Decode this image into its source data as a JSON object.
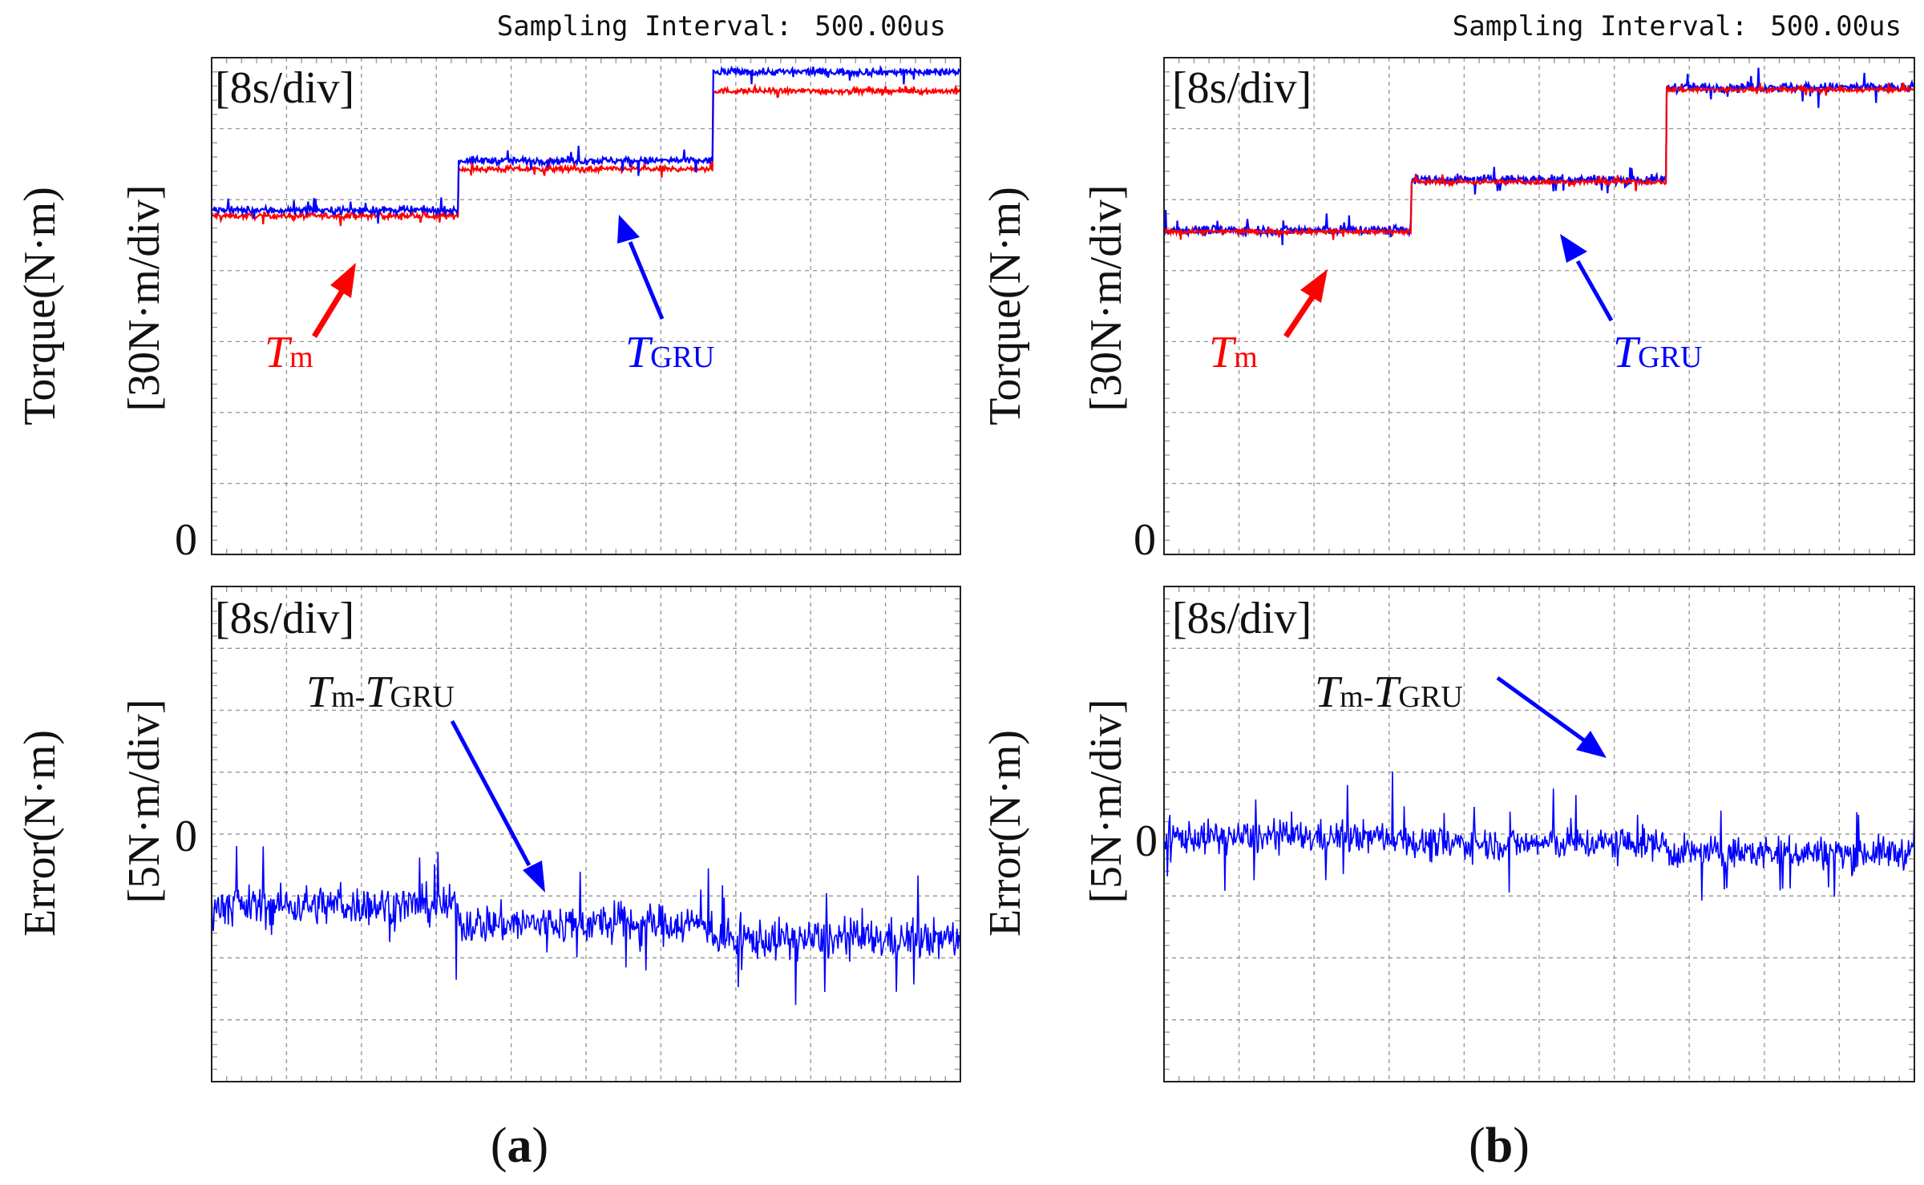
{
  "chart_data": [
    {
      "panel": "a",
      "type": "line",
      "header": "Sampling Interval:",
      "header_value": "500.00us",
      "timebase": "[8s/div]",
      "ylabel": "Torque(N·m)",
      "yscale": "[30N·m/div]",
      "zero_label": "0",
      "xdiv": 10,
      "ydiv": 7,
      "ylim_div": [
        0,
        7
      ],
      "series": [
        {
          "name": "Tm",
          "label_main": "T",
          "label_sub": "m",
          "color": "#ff0000",
          "steps": [
            {
              "x0": 0,
              "x1": 3.3,
              "y": 4.77
            },
            {
              "x0": 3.3,
              "x1": 6.7,
              "y": 5.43
            },
            {
              "x0": 6.7,
              "x1": 10,
              "y": 6.53
            }
          ],
          "noise": 0.07
        },
        {
          "name": "TGRU",
          "label_main": "T",
          "label_sub": "GRU",
          "color": "#0000ff",
          "steps": [
            {
              "x0": 0,
              "x1": 3.3,
              "y": 4.85
            },
            {
              "x0": 3.3,
              "x1": 6.7,
              "y": 5.55
            },
            {
              "x0": 6.7,
              "x1": 10,
              "y": 6.8
            }
          ],
          "noise": 0.09
        }
      ]
    },
    {
      "panel": "a",
      "type": "line",
      "timebase": "[8s/div]",
      "ylabel": "Error(N·m)",
      "yscale": "[5N·m/div]",
      "zero_label": "0",
      "xdiv": 10,
      "ydiv": 8,
      "zero_div": 4,
      "series": [
        {
          "name": "Tm-TGRU",
          "label_main1": "T",
          "label_sub1": "m",
          "label_dash": "-",
          "label_main2": "T",
          "label_sub2": "GRU",
          "color": "#0000ff",
          "steps": [
            {
              "x0": 0,
              "x1": 3.3,
              "y": -1.15
            },
            {
              "x0": 3.3,
              "x1": 6.7,
              "y": -1.45
            },
            {
              "x0": 6.7,
              "x1": 10,
              "y": -1.7
            }
          ],
          "noise": 0.55
        }
      ]
    },
    {
      "panel": "b",
      "type": "line",
      "header": "Sampling Interval:",
      "header_value": "500.00us",
      "timebase": "[8s/div]",
      "ylabel": "Torque(N·m)",
      "yscale": "[30N·m/div]",
      "zero_label": "0",
      "xdiv": 10,
      "ydiv": 7,
      "ylim_div": [
        0,
        7
      ],
      "series": [
        {
          "name": "TGRU",
          "color": "#0000ff",
          "steps": [
            {
              "x0": 0,
              "x1": 3.3,
              "y": 4.57
            },
            {
              "x0": 3.3,
              "x1": 6.7,
              "y": 5.28
            },
            {
              "x0": 6.7,
              "x1": 10,
              "y": 6.58
            }
          ],
          "noise": 0.12
        },
        {
          "name": "Tm",
          "label_main": "T",
          "label_sub": "m",
          "color": "#ff0000",
          "steps": [
            {
              "x0": 0,
              "x1": 3.3,
              "y": 4.55
            },
            {
              "x0": 3.3,
              "x1": 6.7,
              "y": 5.25
            },
            {
              "x0": 6.7,
              "x1": 10,
              "y": 6.55
            }
          ],
          "noise": 0.06
        }
      ],
      "labels": {
        "tm_main": "T",
        "tm_sub": "m",
        "tgru_main": "T",
        "tgru_sub": "GRU"
      }
    },
    {
      "panel": "b",
      "type": "line",
      "timebase": "[8s/div]",
      "ylabel": "Error(N·m)",
      "yscale": "[5N·m/div]",
      "zero_label": "0",
      "xdiv": 10,
      "ydiv": 8,
      "zero_div": 4,
      "series": [
        {
          "name": "Tm-TGRU",
          "label_main1": "T",
          "label_sub1": "m",
          "label_dash": "-",
          "label_main2": "T",
          "label_sub2": "GRU",
          "color": "#0000ff",
          "steps": [
            {
              "x0": 0,
              "x1": 3.3,
              "y": -0.05
            },
            {
              "x0": 3.3,
              "x1": 6.7,
              "y": -0.15
            },
            {
              "x0": 6.7,
              "x1": 10,
              "y": -0.3
            }
          ],
          "noise": 0.45
        }
      ]
    }
  ],
  "captions": {
    "a_open": "(",
    "a_letter": "a",
    "a_close": ")",
    "b_open": "(",
    "b_letter": "b",
    "b_close": ")"
  },
  "colors": {
    "red": "#ff0000",
    "blue": "#0000ff",
    "grid": "#9a9a9a"
  }
}
